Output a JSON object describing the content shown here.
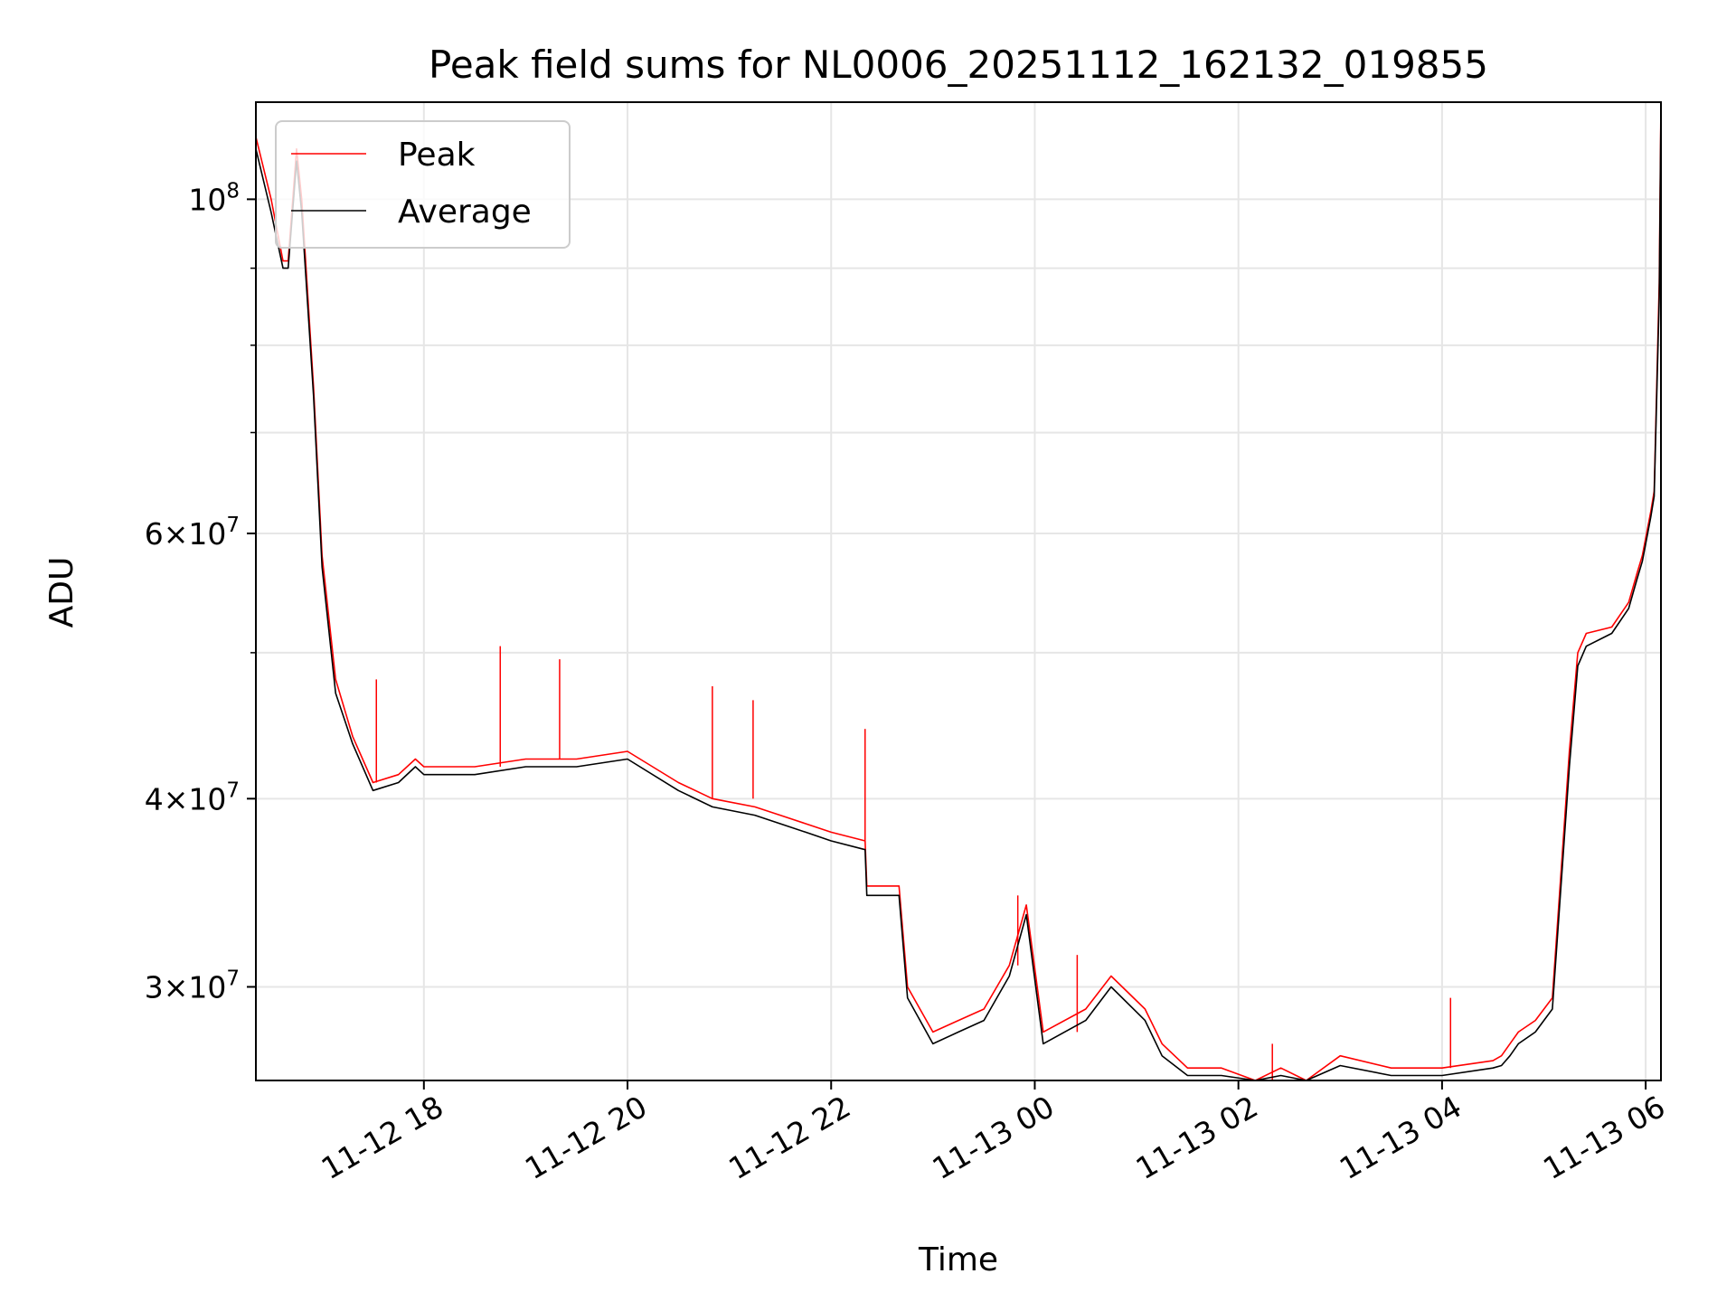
{
  "chart_data": {
    "type": "line",
    "title": "Peak field sums for NL0006_20251112_162132_019855",
    "xlabel": "Time",
    "ylabel": "ADU",
    "y_scale": "log",
    "ylim": [
      26000000,
      116000000
    ],
    "xlim": [
      "2025-11-12 16:21",
      "2025-11-13 06:09"
    ],
    "grid": true,
    "legend_position": "upper-left",
    "x_ticks": [
      {
        "value": "2025-11-12 18:00",
        "label": "11-12 18"
      },
      {
        "value": "2025-11-12 20:00",
        "label": "11-12 20"
      },
      {
        "value": "2025-11-12 22:00",
        "label": "11-12 22"
      },
      {
        "value": "2025-11-13 00:00",
        "label": "11-13 00"
      },
      {
        "value": "2025-11-13 02:00",
        "label": "11-13 02"
      },
      {
        "value": "2025-11-13 04:00",
        "label": "11-13 04"
      },
      {
        "value": "2025-11-13 06:00",
        "label": "11-13 06"
      }
    ],
    "y_ticks": [
      {
        "value": 30000000,
        "base": "3",
        "exp": "7"
      },
      {
        "value": 40000000,
        "base": "4",
        "exp": "7"
      },
      {
        "value": 60000000,
        "base": "6",
        "exp": "7"
      },
      {
        "value": 100000000,
        "base": "",
        "exp": "8"
      }
    ],
    "y_minor_ticks": [
      50000000,
      70000000,
      80000000,
      90000000
    ],
    "series": [
      {
        "name": "Peak",
        "color": "#ff0000",
        "x": [
          "2025-11-12 16:21",
          "2025-11-12 16:30",
          "2025-11-12 16:37",
          "2025-11-12 16:40",
          "2025-11-12 16:45",
          "2025-11-12 16:48",
          "2025-11-12 16:55",
          "2025-11-12 17:00",
          "2025-11-12 17:08",
          "2025-11-12 17:18",
          "2025-11-12 17:30",
          "2025-11-12 17:45",
          "2025-11-12 17:55",
          "2025-11-12 18:00",
          "2025-11-12 18:30",
          "2025-11-12 19:00",
          "2025-11-12 19:30",
          "2025-11-12 20:00",
          "2025-11-12 20:30",
          "2025-11-12 20:50",
          "2025-11-12 21:15",
          "2025-11-12 21:30",
          "2025-11-12 21:45",
          "2025-11-12 22:00",
          "2025-11-12 22:20",
          "2025-11-12 22:21",
          "2025-11-12 22:40",
          "2025-11-12 22:45",
          "2025-11-12 23:00",
          "2025-11-12 23:15",
          "2025-11-12 23:30",
          "2025-11-12 23:45",
          "2025-11-12 23:55",
          "2025-11-13 00:05",
          "2025-11-13 00:30",
          "2025-11-13 00:45",
          "2025-11-13 01:05",
          "2025-11-13 01:15",
          "2025-11-13 01:30",
          "2025-11-13 01:50",
          "2025-11-13 02:10",
          "2025-11-13 02:25",
          "2025-11-13 02:40",
          "2025-11-13 03:00",
          "2025-11-13 03:30",
          "2025-11-13 04:00",
          "2025-11-13 04:30",
          "2025-11-13 04:35",
          "2025-11-13 04:40",
          "2025-11-13 04:45",
          "2025-11-13 04:55",
          "2025-11-13 05:05",
          "2025-11-13 05:15",
          "2025-11-13 05:20",
          "2025-11-13 05:25",
          "2025-11-13 05:40",
          "2025-11-13 05:50",
          "2025-11-13 05:55",
          "2025-11-13 05:58",
          "2025-11-13 06:03",
          "2025-11-13 06:05",
          "2025-11-13 06:08",
          "2025-11-13 06:09"
        ],
        "values": [
          110000000,
          100000000,
          91000000,
          91000000,
          108000000,
          100000000,
          75000000,
          58000000,
          48000000,
          44000000,
          41000000,
          41500000,
          42500000,
          42000000,
          42000000,
          42500000,
          42500000,
          43000000,
          41000000,
          40000000,
          39500000,
          39000000,
          38500000,
          38000000,
          37500000,
          35000000,
          35000000,
          30000000,
          28000000,
          28500000,
          29000000,
          31000000,
          34000000,
          28000000,
          29000000,
          30500000,
          29000000,
          27500000,
          26500000,
          26500000,
          26000000,
          26500000,
          26000000,
          27000000,
          26500000,
          26500000,
          26800000,
          27000000,
          27500000,
          28000000,
          28500000,
          29500000,
          43000000,
          50000000,
          51500000,
          52000000,
          54000000,
          56500000,
          58000000,
          62000000,
          64000000,
          88000000,
          118000000
        ],
        "spikes": [
          {
            "x": "2025-11-12 17:32",
            "y": 48000000
          },
          {
            "x": "2025-11-12 18:45",
            "y": 50500000
          },
          {
            "x": "2025-11-12 19:20",
            "y": 49500000
          },
          {
            "x": "2025-11-12 20:50",
            "y": 47500000
          },
          {
            "x": "2025-11-12 21:14",
            "y": 46500000
          },
          {
            "x": "2025-11-12 22:20",
            "y": 44500000
          },
          {
            "x": "2025-11-12 23:50",
            "y": 34500000
          },
          {
            "x": "2025-11-13 00:25",
            "y": 31500000
          },
          {
            "x": "2025-11-13 02:20",
            "y": 27500000
          },
          {
            "x": "2025-11-13 04:05",
            "y": 29500000
          }
        ]
      },
      {
        "name": "Average",
        "color": "#000000",
        "x": [
          "2025-11-12 16:21",
          "2025-11-12 16:30",
          "2025-11-12 16:37",
          "2025-11-12 16:40",
          "2025-11-12 16:45",
          "2025-11-12 16:48",
          "2025-11-12 16:55",
          "2025-11-12 17:00",
          "2025-11-12 17:08",
          "2025-11-12 17:18",
          "2025-11-12 17:30",
          "2025-11-12 17:45",
          "2025-11-12 17:55",
          "2025-11-12 18:00",
          "2025-11-12 18:30",
          "2025-11-12 19:00",
          "2025-11-12 19:30",
          "2025-11-12 20:00",
          "2025-11-12 20:30",
          "2025-11-12 20:50",
          "2025-11-12 21:15",
          "2025-11-12 21:30",
          "2025-11-12 21:45",
          "2025-11-12 22:00",
          "2025-11-12 22:20",
          "2025-11-12 22:21",
          "2025-11-12 22:40",
          "2025-11-12 22:45",
          "2025-11-12 23:00",
          "2025-11-12 23:15",
          "2025-11-12 23:30",
          "2025-11-12 23:45",
          "2025-11-12 23:55",
          "2025-11-13 00:05",
          "2025-11-13 00:30",
          "2025-11-13 00:45",
          "2025-11-13 01:05",
          "2025-11-13 01:15",
          "2025-11-13 01:30",
          "2025-11-13 01:50",
          "2025-11-13 02:10",
          "2025-11-13 02:25",
          "2025-11-13 02:40",
          "2025-11-13 03:00",
          "2025-11-13 03:30",
          "2025-11-13 04:00",
          "2025-11-13 04:30",
          "2025-11-13 04:35",
          "2025-11-13 04:40",
          "2025-11-13 04:45",
          "2025-11-13 04:55",
          "2025-11-13 05:05",
          "2025-11-13 05:15",
          "2025-11-13 05:20",
          "2025-11-13 05:25",
          "2025-11-13 05:40",
          "2025-11-13 05:50",
          "2025-11-13 05:55",
          "2025-11-13 05:58",
          "2025-11-13 06:03",
          "2025-11-13 06:05",
          "2025-11-13 06:08",
          "2025-11-13 06:09"
        ],
        "values": [
          108000000,
          98000000,
          90000000,
          90000000,
          106000000,
          98000000,
          74000000,
          57000000,
          47000000,
          43500000,
          40500000,
          41000000,
          42000000,
          41500000,
          41500000,
          42000000,
          42000000,
          42500000,
          40500000,
          39500000,
          39000000,
          38500000,
          38000000,
          37500000,
          37000000,
          34500000,
          34500000,
          29500000,
          27500000,
          28000000,
          28500000,
          30500000,
          33500000,
          27500000,
          28500000,
          30000000,
          28500000,
          27000000,
          26200000,
          26200000,
          25800000,
          26200000,
          25800000,
          26600000,
          26200000,
          26200000,
          26500000,
          26600000,
          27000000,
          27500000,
          28000000,
          29000000,
          42000000,
          49000000,
          50500000,
          51500000,
          53500000,
          56000000,
          57500000,
          61500000,
          63500000,
          86000000,
          115000000
        ]
      }
    ]
  }
}
